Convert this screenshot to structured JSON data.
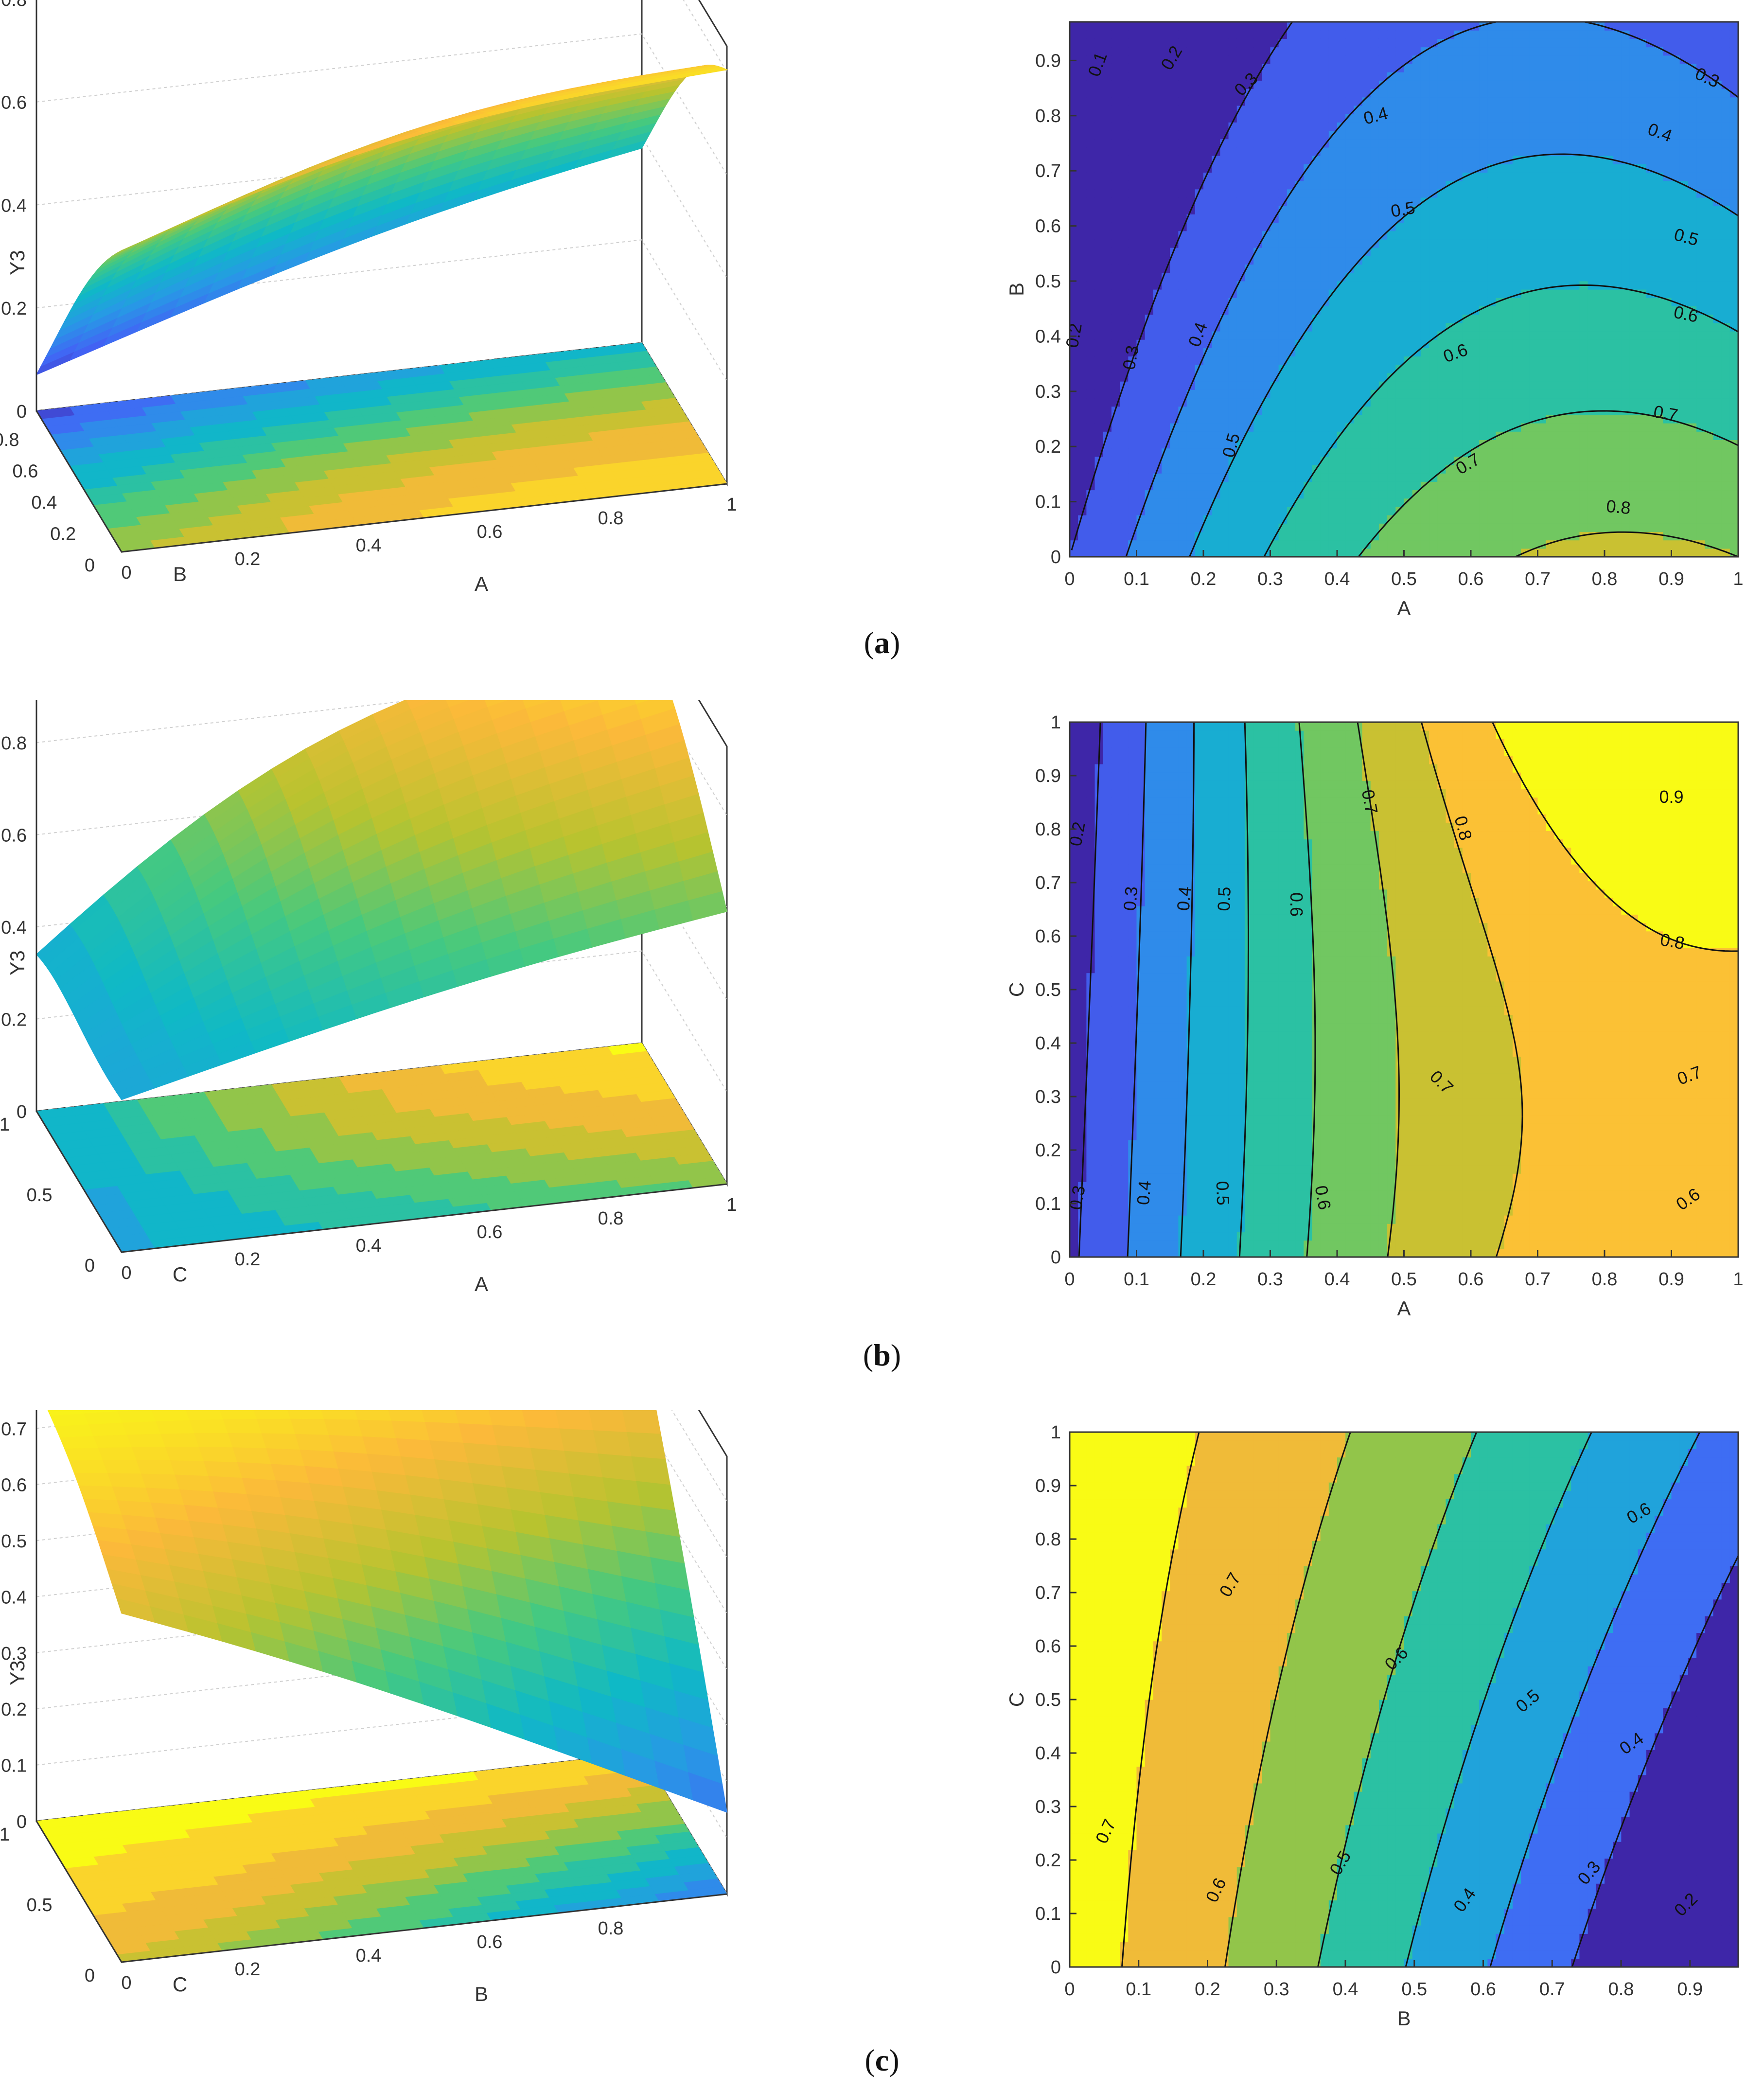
{
  "panels": [
    {
      "caption": {
        "open": "(",
        "letter": "a",
        "close": ")"
      },
      "surface": {
        "type": "surface3d",
        "zlabel": "Y3",
        "xlabel": "A",
        "ylabel": "B",
        "zticks": [
          "0",
          "0.2",
          "0.4",
          "0.6",
          "0.8"
        ],
        "xticks": [
          "0",
          "0.2",
          "0.4",
          "0.6",
          "0.8",
          "1"
        ],
        "yticks": [
          "0",
          "0.2",
          "0.4",
          "0.6",
          "0.8"
        ],
        "zlim": [
          0,
          0.85
        ],
        "corners": {
          "x0y0": 0.5,
          "x1y0": 0.75,
          "x0y1": 0.03,
          "x1y1": 0.32
        },
        "peak": {
          "x": 0.75,
          "y": 0,
          "value": 0.85
        }
      },
      "contour": {
        "type": "contour",
        "xlabel": "A",
        "ylabel": "B",
        "xticks": [
          "0",
          "0.1",
          "0.2",
          "0.3",
          "0.4",
          "0.5",
          "0.6",
          "0.7",
          "0.8",
          "0.9",
          "1"
        ],
        "yticks": [
          "0",
          "0.1",
          "0.2",
          "0.3",
          "0.4",
          "0.5",
          "0.6",
          "0.7",
          "0.8",
          "0.9"
        ],
        "xlim": [
          0,
          1
        ],
        "ylim": [
          0,
          0.97
        ],
        "levels": [
          0.1,
          0.2,
          0.3,
          0.4,
          0.5,
          0.6,
          0.7,
          0.8
        ],
        "level_labels": [
          {
            "text": "0.1",
            "x": 0.05,
            "y": 0.9,
            "rot": -70
          },
          {
            "text": "0.2",
            "x": 0.16,
            "y": 0.91,
            "rot": -60
          },
          {
            "text": "0.3",
            "x": 0.27,
            "y": 0.86,
            "rot": -45
          },
          {
            "text": "0.4",
            "x": 0.46,
            "y": 0.8,
            "rot": -15
          },
          {
            "text": "0.3",
            "x": 0.95,
            "y": 0.87,
            "rot": 25
          },
          {
            "text": "0.4",
            "x": 0.88,
            "y": 0.77,
            "rot": 20
          },
          {
            "text": "0.5",
            "x": 0.5,
            "y": 0.63,
            "rot": -10
          },
          {
            "text": "0.5",
            "x": 0.92,
            "y": 0.58,
            "rot": 15
          },
          {
            "text": "0.6",
            "x": 0.92,
            "y": 0.44,
            "rot": 12
          },
          {
            "text": "0.6",
            "x": 0.58,
            "y": 0.37,
            "rot": -20
          },
          {
            "text": "0.7",
            "x": 0.89,
            "y": 0.26,
            "rot": 10
          },
          {
            "text": "0.7",
            "x": 0.6,
            "y": 0.17,
            "rot": -30
          },
          {
            "text": "0.8",
            "x": 0.82,
            "y": 0.09,
            "rot": 5
          },
          {
            "text": "0.2",
            "x": 0.015,
            "y": 0.41,
            "rot": -80
          },
          {
            "text": "0.3",
            "x": 0.1,
            "y": 0.37,
            "rot": -80
          },
          {
            "text": "0.4",
            "x": 0.2,
            "y": 0.41,
            "rot": -70
          },
          {
            "text": "0.5",
            "x": 0.25,
            "y": 0.21,
            "rot": -75
          }
        ]
      }
    },
    {
      "caption": {
        "open": "(",
        "letter": "b",
        "close": ")"
      },
      "surface": {
        "type": "surface3d",
        "zlabel": "Y3",
        "xlabel": "A",
        "ylabel": "C",
        "zticks": [
          "0",
          "0.2",
          "0.4",
          "0.6",
          "0.8"
        ],
        "xticks": [
          "0",
          "0.2",
          "0.4",
          "0.6",
          "0.8",
          "1"
        ],
        "yticks": [
          "0",
          "0.5",
          "1"
        ],
        "zlim": [
          0,
          0.95
        ],
        "corners": {
          "x0y0": 0.3,
          "x1y0": 0.55,
          "x0y1": 0.15,
          "x1y1": 0.93
        },
        "peak": {
          "x": 0.75,
          "y": 1,
          "value": 0.93
        }
      },
      "contour": {
        "type": "contour",
        "xlabel": "A",
        "ylabel": "C",
        "xticks": [
          "0",
          "0.1",
          "0.2",
          "0.3",
          "0.4",
          "0.5",
          "0.6",
          "0.7",
          "0.8",
          "0.9",
          "1"
        ],
        "yticks": [
          "0",
          "0.1",
          "0.2",
          "0.3",
          "0.4",
          "0.5",
          "0.6",
          "0.7",
          "0.8",
          "0.9",
          "1"
        ],
        "xlim": [
          0,
          1
        ],
        "ylim": [
          0,
          1
        ],
        "levels": [
          0.2,
          0.3,
          0.4,
          0.5,
          0.6,
          0.7,
          0.8,
          0.9
        ],
        "level_labels": [
          {
            "text": "0.2",
            "x": 0.02,
            "y": 0.8,
            "rot": -80
          },
          {
            "text": "0.3",
            "x": 0.1,
            "y": 0.68,
            "rot": -85
          },
          {
            "text": "0.4",
            "x": 0.18,
            "y": 0.68,
            "rot": -85
          },
          {
            "text": "0.5",
            "x": 0.24,
            "y": 0.68,
            "rot": -88
          },
          {
            "text": "0.6",
            "x": 0.33,
            "y": 0.67,
            "rot": 90
          },
          {
            "text": "0.7",
            "x": 0.44,
            "y": 0.86,
            "rot": 80
          },
          {
            "text": "0.8",
            "x": 0.58,
            "y": 0.81,
            "rot": 75
          },
          {
            "text": "0.9",
            "x": 0.9,
            "y": 0.86,
            "rot": 0
          },
          {
            "text": "0.8",
            "x": 0.9,
            "y": 0.59,
            "rot": 10
          },
          {
            "text": "0.7",
            "x": 0.55,
            "y": 0.33,
            "rot": 45
          },
          {
            "text": "0.7",
            "x": 0.93,
            "y": 0.34,
            "rot": -20
          },
          {
            "text": "0.6",
            "x": 0.93,
            "y": 0.11,
            "rot": -35
          },
          {
            "text": "0.3",
            "x": 0.02,
            "y": 0.12,
            "rot": -80
          },
          {
            "text": "0.4",
            "x": 0.12,
            "y": 0.13,
            "rot": -85
          },
          {
            "text": "0.5",
            "x": 0.22,
            "y": 0.13,
            "rot": 88
          },
          {
            "text": "0.6",
            "x": 0.37,
            "y": 0.12,
            "rot": 80
          }
        ]
      }
    },
    {
      "caption": {
        "open": "(",
        "letter": "c",
        "close": ")"
      },
      "surface": {
        "type": "surface3d",
        "zlabel": "Y3",
        "xlabel": "B",
        "ylabel": "C",
        "zticks": [
          "0",
          "0.1",
          "0.2",
          "0.3",
          "0.4",
          "0.5",
          "0.6",
          "0.7"
        ],
        "xticks": [
          "0",
          "0.2",
          "0.4",
          "0.6",
          "0.8"
        ],
        "yticks": [
          "0",
          "0.5",
          "1"
        ],
        "zlim": [
          0,
          0.78
        ],
        "corners": {
          "x0y0": 0.6,
          "x1y0": 0.13,
          "x0y1": 0.77,
          "x1y1": 0.74
        },
        "peak": {
          "x": 0,
          "y": 1,
          "value": 0.78
        }
      },
      "contour": {
        "type": "contour",
        "xlabel": "B",
        "ylabel": "C",
        "xticks": [
          "0",
          "0.1",
          "0.2",
          "0.3",
          "0.4",
          "0.5",
          "0.6",
          "0.7",
          "0.8",
          "0.9"
        ],
        "yticks": [
          "0",
          "0.1",
          "0.2",
          "0.3",
          "0.4",
          "0.5",
          "0.6",
          "0.7",
          "0.8",
          "0.9",
          "1"
        ],
        "xlim": [
          0,
          0.97
        ],
        "ylim": [
          0,
          1
        ],
        "levels": [
          0.2,
          0.3,
          0.4,
          0.5,
          0.6,
          0.7
        ],
        "level_labels": [
          {
            "text": "0.7",
            "x": 0.24,
            "y": 0.72,
            "rot": -60
          },
          {
            "text": "0.6",
            "x": 0.48,
            "y": 0.58,
            "rot": -45
          },
          {
            "text": "0.5",
            "x": 0.67,
            "y": 0.5,
            "rot": -40
          },
          {
            "text": "0.4",
            "x": 0.82,
            "y": 0.42,
            "rot": -35
          },
          {
            "text": "0.6",
            "x": 0.83,
            "y": 0.85,
            "rot": -30
          },
          {
            "text": "0.7",
            "x": 0.06,
            "y": 0.26,
            "rot": -65
          },
          {
            "text": "0.6",
            "x": 0.22,
            "y": 0.15,
            "rot": -65
          },
          {
            "text": "0.5",
            "x": 0.4,
            "y": 0.2,
            "rot": -60
          },
          {
            "text": "0.4",
            "x": 0.58,
            "y": 0.13,
            "rot": -55
          },
          {
            "text": "0.3",
            "x": 0.76,
            "y": 0.18,
            "rot": -50
          },
          {
            "text": "0.2",
            "x": 0.9,
            "y": 0.12,
            "rot": -45
          }
        ]
      }
    }
  ],
  "colormap": [
    "#3e26a8",
    "#4264f5",
    "#2898e6",
    "#0fb9c6",
    "#46c97f",
    "#b8c32f",
    "#fbb93a",
    "#f9fb15"
  ]
}
